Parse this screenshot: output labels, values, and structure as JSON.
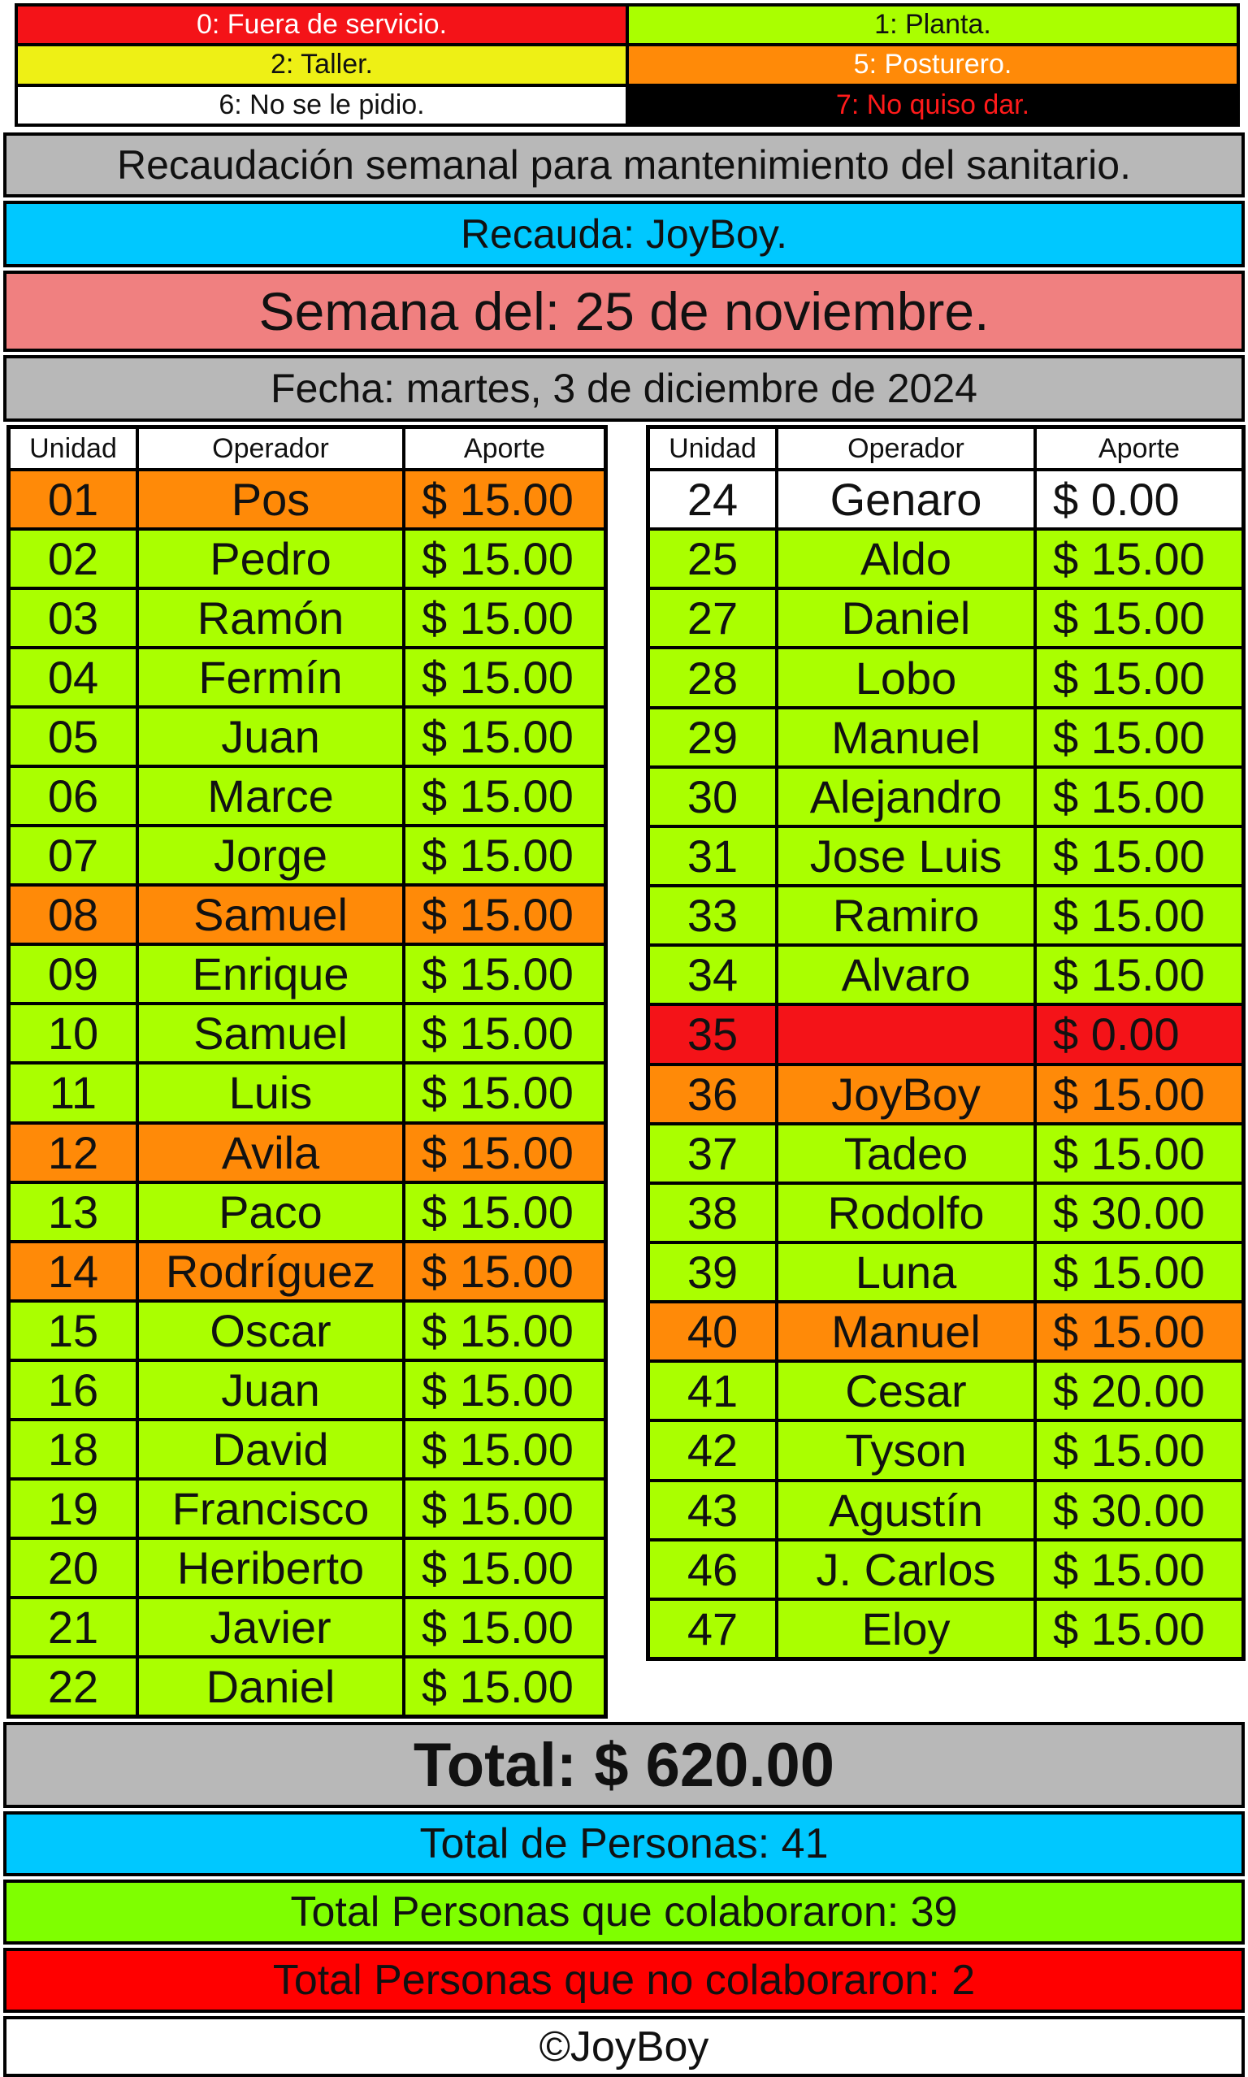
{
  "colors": {
    "red": "#f41318",
    "green": "#aaff00",
    "yellow": "#eef015",
    "orange": "#ff8a08",
    "white": "#ffffff",
    "black": "#000000",
    "gray": "#b8b8b8",
    "cyan": "#00c8ff",
    "salmon": "#f08080",
    "brightGreen": "#7fff00",
    "bannerRed": "#ff0000"
  },
  "legend": [
    {
      "label": "0: Fuera de servicio.",
      "status": "red"
    },
    {
      "label": "1: Planta.",
      "status": "green"
    },
    {
      "label": "2: Taller.",
      "status": "yellow"
    },
    {
      "label": "5: Posturero.",
      "status": "orange"
    },
    {
      "label": "6: No se le pidio.",
      "status": "white"
    },
    {
      "label": "7: No quiso dar.",
      "status": "black"
    }
  ],
  "header": {
    "title": "Recaudación semanal para mantenimiento del sanitario.",
    "collector": "Recauda: JoyBoy.",
    "week": "Semana del: 25 de noviembre.",
    "date": "Fecha: martes, 3 de diciembre de 2024"
  },
  "columns": [
    "Unidad",
    "Operador",
    "Aporte"
  ],
  "left_table": [
    {
      "unit": "01",
      "operator": "Pos",
      "amount": "$ 15.00",
      "status": "orange"
    },
    {
      "unit": "02",
      "operator": "Pedro",
      "amount": "$ 15.00",
      "status": "green"
    },
    {
      "unit": "03",
      "operator": "Ramón",
      "amount": "$ 15.00",
      "status": "green"
    },
    {
      "unit": "04",
      "operator": "Fermín",
      "amount": "$ 15.00",
      "status": "green"
    },
    {
      "unit": "05",
      "operator": "Juan",
      "amount": "$ 15.00",
      "status": "green"
    },
    {
      "unit": "06",
      "operator": "Marce",
      "amount": "$ 15.00",
      "status": "green"
    },
    {
      "unit": "07",
      "operator": "Jorge",
      "amount": "$ 15.00",
      "status": "green"
    },
    {
      "unit": "08",
      "operator": "Samuel",
      "amount": "$ 15.00",
      "status": "orange"
    },
    {
      "unit": "09",
      "operator": "Enrique",
      "amount": "$ 15.00",
      "status": "green"
    },
    {
      "unit": "10",
      "operator": "Samuel",
      "amount": "$ 15.00",
      "status": "green"
    },
    {
      "unit": "11",
      "operator": "Luis",
      "amount": "$ 15.00",
      "status": "green"
    },
    {
      "unit": "12",
      "operator": "Avila",
      "amount": "$ 15.00",
      "status": "orange"
    },
    {
      "unit": "13",
      "operator": "Paco",
      "amount": "$ 15.00",
      "status": "green"
    },
    {
      "unit": "14",
      "operator": "Rodríguez",
      "amount": "$ 15.00",
      "status": "orange"
    },
    {
      "unit": "15",
      "operator": "Oscar",
      "amount": "$ 15.00",
      "status": "green"
    },
    {
      "unit": "16",
      "operator": "Juan",
      "amount": "$ 15.00",
      "status": "green"
    },
    {
      "unit": "18",
      "operator": "David",
      "amount": "$ 15.00",
      "status": "green"
    },
    {
      "unit": "19",
      "operator": "Francisco",
      "amount": "$ 15.00",
      "status": "green"
    },
    {
      "unit": "20",
      "operator": "Heriberto",
      "amount": "$ 15.00",
      "status": "green"
    },
    {
      "unit": "21",
      "operator": "Javier",
      "amount": "$ 15.00",
      "status": "green"
    },
    {
      "unit": "22",
      "operator": "Daniel",
      "amount": "$ 15.00",
      "status": "green"
    }
  ],
  "right_table": [
    {
      "unit": "24",
      "operator": "Genaro",
      "amount": "$ 0.00",
      "status": "white"
    },
    {
      "unit": "25",
      "operator": "Aldo",
      "amount": "$ 15.00",
      "status": "green"
    },
    {
      "unit": "27",
      "operator": "Daniel",
      "amount": "$ 15.00",
      "status": "green"
    },
    {
      "unit": "28",
      "operator": "Lobo",
      "amount": "$ 15.00",
      "status": "green"
    },
    {
      "unit": "29",
      "operator": "Manuel",
      "amount": "$ 15.00",
      "status": "green"
    },
    {
      "unit": "30",
      "operator": "Alejandro",
      "amount": "$ 15.00",
      "status": "green"
    },
    {
      "unit": "31",
      "operator": "Jose Luis",
      "amount": "$ 15.00",
      "status": "green"
    },
    {
      "unit": "33",
      "operator": "Ramiro",
      "amount": "$ 15.00",
      "status": "green"
    },
    {
      "unit": "34",
      "operator": "Alvaro",
      "amount": "$ 15.00",
      "status": "green"
    },
    {
      "unit": "35",
      "operator": "",
      "amount": "$ 0.00",
      "status": "red"
    },
    {
      "unit": "36",
      "operator": "JoyBoy",
      "amount": "$ 15.00",
      "status": "orange"
    },
    {
      "unit": "37",
      "operator": "Tadeo",
      "amount": "$ 15.00",
      "status": "green"
    },
    {
      "unit": "38",
      "operator": "Rodolfo",
      "amount": "$ 30.00",
      "status": "green"
    },
    {
      "unit": "39",
      "operator": "Luna",
      "amount": "$ 15.00",
      "status": "green"
    },
    {
      "unit": "40",
      "operator": "Manuel",
      "amount": "$ 15.00",
      "status": "orange"
    },
    {
      "unit": "41",
      "operator": "Cesar",
      "amount": "$ 20.00",
      "status": "green"
    },
    {
      "unit": "42",
      "operator": "Tyson",
      "amount": "$ 15.00",
      "status": "green"
    },
    {
      "unit": "43",
      "operator": "Agustín",
      "amount": "$ 30.00",
      "status": "green"
    },
    {
      "unit": "46",
      "operator": "J. Carlos",
      "amount": "$ 15.00",
      "status": "green"
    },
    {
      "unit": "47",
      "operator": "Eloy",
      "amount": "$ 15.00",
      "status": "green"
    }
  ],
  "footer": {
    "total": "Total: $ 620.00",
    "people": "Total de Personas: 41",
    "contributed": "Total Personas que colaboraron: 39",
    "not_contributed": "Total Personas que no colaboraron: 2",
    "copyright": "©JoyBoy"
  }
}
